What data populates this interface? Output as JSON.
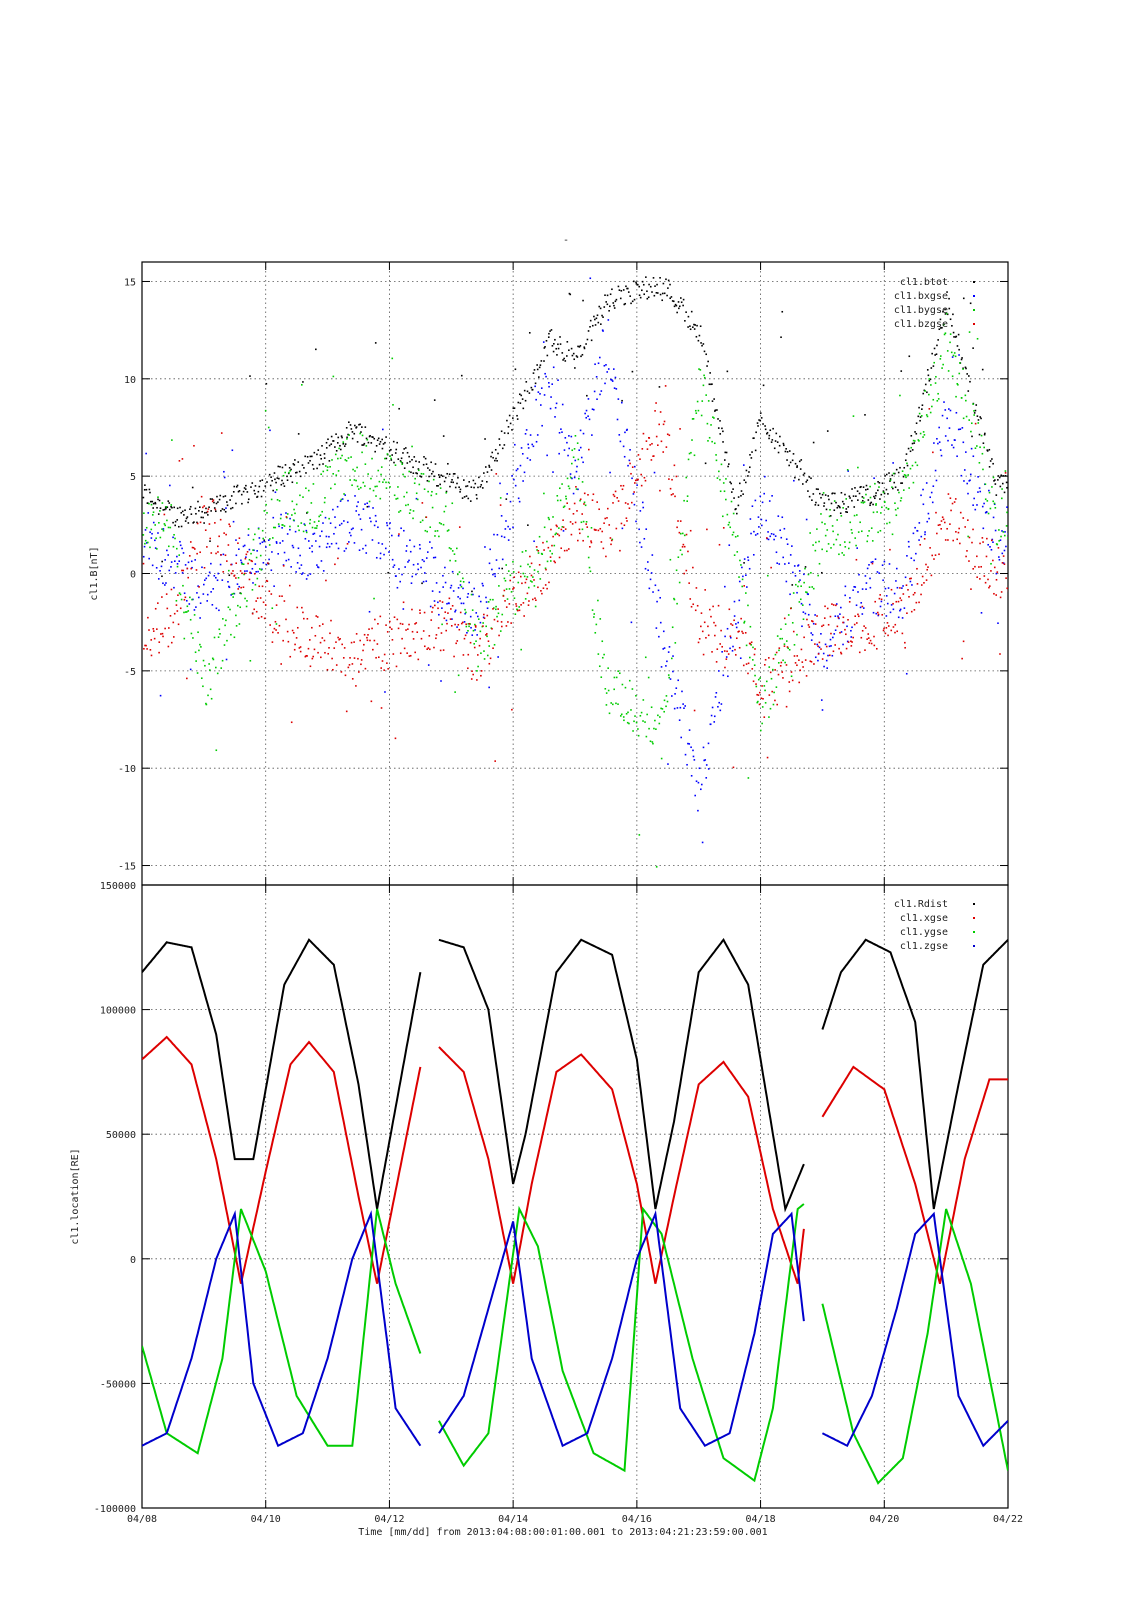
{
  "page_title": "-",
  "x_axis": {
    "label": "Time [mm/dd]  from 2013:04:08:00:01:00.001  to  2013:04:21:23:59:00.001",
    "tick_labels": [
      "04/08",
      "04/10",
      "04/12",
      "04/14",
      "04/16",
      "04/18",
      "04/20",
      "04/22"
    ],
    "range_days": [
      8,
      22
    ]
  },
  "chart_data": [
    {
      "type": "scatter",
      "title": "",
      "ylabel": "cl1.B[nT]",
      "ylim": [
        -16,
        16
      ],
      "yticks": [
        15,
        10,
        5,
        0,
        -5,
        -10,
        -15
      ],
      "grid": true,
      "legend_position": "top-right",
      "x_units": "day of April 2013",
      "series": [
        {
          "name": "cl1.btot",
          "color": "#000000",
          "x": [
            8.0,
            8.5,
            9.0,
            10.2,
            10.8,
            11.4,
            12.9,
            13.4,
            14.6,
            15.0,
            15.5,
            16.4,
            17.0,
            17.6,
            18.0,
            19.0,
            19.7,
            20.3,
            21.0,
            21.8
          ],
          "values": [
            4.2,
            3.0,
            3.2,
            5.0,
            5.8,
            7.5,
            4.8,
            4.2,
            12.0,
            11.0,
            14.0,
            15.0,
            12.5,
            3.5,
            8.0,
            3.5,
            4.0,
            5.0,
            14.0,
            4.5
          ]
        },
        {
          "name": "cl1.bxgse",
          "color": "#0000ff",
          "x": [
            8.0,
            8.5,
            9.0,
            10.2,
            10.8,
            11.4,
            12.9,
            13.4,
            14.6,
            15.0,
            15.5,
            16.4,
            17.0,
            17.6,
            18.0,
            19.0,
            19.7,
            20.3,
            21.0,
            21.8
          ],
          "values": [
            2.0,
            0.5,
            -1.0,
            2.0,
            1.0,
            3.0,
            -1.0,
            -2.0,
            10.0,
            5.0,
            12.0,
            -3.0,
            -11.0,
            -1.5,
            4.0,
            -4.0,
            -0.5,
            -1.0,
            8.0,
            2.0
          ]
        },
        {
          "name": "cl1.bygse",
          "color": "#00cc00",
          "x": [
            8.0,
            8.5,
            9.0,
            10.2,
            10.8,
            11.4,
            12.9,
            13.4,
            14.6,
            15.0,
            15.5,
            16.4,
            17.0,
            17.6,
            18.0,
            19.0,
            19.7,
            20.3,
            21.0,
            21.8
          ],
          "values": [
            3.0,
            2.0,
            -6.0,
            4.0,
            3.5,
            6.0,
            3.0,
            -3.5,
            2.0,
            6.0,
            -6.0,
            -8.0,
            10.0,
            1.0,
            -7.0,
            2.0,
            3.0,
            4.0,
            12.0,
            3.0
          ]
        },
        {
          "name": "cl1.bzgse",
          "color": "#dd0000",
          "x": [
            8.0,
            8.5,
            9.0,
            10.2,
            10.8,
            11.4,
            12.9,
            13.4,
            14.6,
            15.0,
            15.5,
            16.4,
            17.0,
            17.6,
            18.0,
            19.0,
            19.7,
            20.3,
            21.0,
            21.8
          ],
          "values": [
            -3.5,
            -2.0,
            3.0,
            -2.5,
            -3.5,
            -4.0,
            -2.5,
            -4.0,
            1.0,
            3.0,
            2.0,
            8.0,
            -3.0,
            -3.0,
            -6.0,
            -3.0,
            -2.5,
            -2.0,
            3.0,
            0.0
          ]
        }
      ]
    },
    {
      "type": "line",
      "title": "",
      "ylabel": "cl1.location[RE]",
      "ylim": [
        -100000,
        150000
      ],
      "yticks": [
        150000,
        100000,
        50000,
        0,
        -50000,
        -100000
      ],
      "grid": true,
      "legend_position": "top-right",
      "x_units": "day of April 2013",
      "gaps_days": [
        [
          12.5,
          12.8
        ],
        [
          18.7,
          19.0
        ]
      ],
      "series": [
        {
          "name": "cl1.Rdist",
          "color": "#000000",
          "x": [
            8.0,
            8.4,
            8.8,
            9.2,
            9.5,
            9.8,
            10.3,
            10.7,
            11.1,
            11.5,
            11.8,
            12.5,
            12.8,
            13.2,
            13.6,
            14.0,
            14.2,
            14.7,
            15.1,
            15.6,
            16.0,
            16.3,
            16.6,
            17.0,
            17.4,
            17.8,
            18.1,
            18.4,
            18.7,
            19.0,
            19.3,
            19.7,
            20.1,
            20.5,
            20.8,
            21.2,
            21.6,
            22.0
          ],
          "values": [
            115000,
            127000,
            125000,
            90000,
            40000,
            40000,
            110000,
            128000,
            118000,
            70000,
            20000,
            115000,
            128000,
            125000,
            100000,
            30000,
            50000,
            115000,
            128000,
            122000,
            80000,
            20000,
            55000,
            115000,
            128000,
            110000,
            65000,
            20000,
            38000,
            92000,
            115000,
            128000,
            123000,
            95000,
            20000,
            70000,
            118000,
            128000
          ]
        },
        {
          "name": "cl1.xgse",
          "color": "#dd0000",
          "x": [
            8.0,
            8.4,
            8.8,
            9.2,
            9.6,
            10.0,
            10.4,
            10.7,
            11.1,
            11.5,
            11.8,
            12.5,
            12.8,
            13.2,
            13.6,
            14.0,
            14.3,
            14.7,
            15.1,
            15.6,
            16.0,
            16.3,
            16.6,
            17.0,
            17.4,
            17.8,
            18.2,
            18.6,
            18.7,
            19.0,
            19.5,
            20.0,
            20.5,
            20.9,
            21.3,
            21.7,
            22.0
          ],
          "values": [
            80000,
            89000,
            78000,
            40000,
            -10000,
            35000,
            78000,
            87000,
            75000,
            25000,
            -10000,
            77000,
            85000,
            75000,
            40000,
            -10000,
            30000,
            75000,
            82000,
            68000,
            30000,
            -10000,
            25000,
            70000,
            79000,
            65000,
            20000,
            -10000,
            12000,
            57000,
            77000,
            68000,
            30000,
            -10000,
            40000,
            72000,
            72000
          ]
        },
        {
          "name": "cl1.ygse",
          "color": "#00cc00",
          "x": [
            8.0,
            8.4,
            8.9,
            9.3,
            9.6,
            10.0,
            10.5,
            11.0,
            11.4,
            11.8,
            12.1,
            12.5,
            12.8,
            13.2,
            13.6,
            14.1,
            14.4,
            14.8,
            15.3,
            15.8,
            16.1,
            16.4,
            16.9,
            17.4,
            17.9,
            18.2,
            18.6,
            18.7,
            19.0,
            19.5,
            19.9,
            20.3,
            20.7,
            21.0,
            21.4,
            21.8,
            22.0
          ],
          "values": [
            -35000,
            -70000,
            -78000,
            -40000,
            20000,
            -5000,
            -55000,
            -75000,
            -75000,
            20000,
            -10000,
            -38000,
            -65000,
            -83000,
            -70000,
            20000,
            5000,
            -45000,
            -78000,
            -85000,
            20000,
            10000,
            -40000,
            -80000,
            -89000,
            -60000,
            20000,
            22000,
            -18000,
            -70000,
            -90000,
            -80000,
            -30000,
            20000,
            -10000,
            -60000,
            -85000
          ]
        },
        {
          "name": "cl1.zgse",
          "color": "#0000cc",
          "x": [
            8.0,
            8.4,
            8.8,
            9.2,
            9.5,
            9.8,
            10.2,
            10.6,
            11.0,
            11.4,
            11.7,
            12.1,
            12.5,
            12.8,
            13.2,
            13.6,
            14.0,
            14.3,
            14.8,
            15.2,
            15.6,
            16.0,
            16.3,
            16.7,
            17.1,
            17.5,
            17.9,
            18.2,
            18.5,
            18.7,
            19.0,
            19.4,
            19.8,
            20.2,
            20.5,
            20.8,
            21.2,
            21.6,
            22.0
          ],
          "values": [
            -75000,
            -70000,
            -40000,
            0,
            18000,
            -50000,
            -75000,
            -70000,
            -40000,
            0,
            18000,
            -60000,
            -75000,
            -70000,
            -55000,
            -20000,
            15000,
            -40000,
            -75000,
            -70000,
            -40000,
            0,
            18000,
            -60000,
            -75000,
            -70000,
            -30000,
            10000,
            18000,
            -25000,
            -70000,
            -75000,
            -55000,
            -20000,
            10000,
            18000,
            -55000,
            -75000,
            -65000
          ]
        }
      ]
    }
  ]
}
